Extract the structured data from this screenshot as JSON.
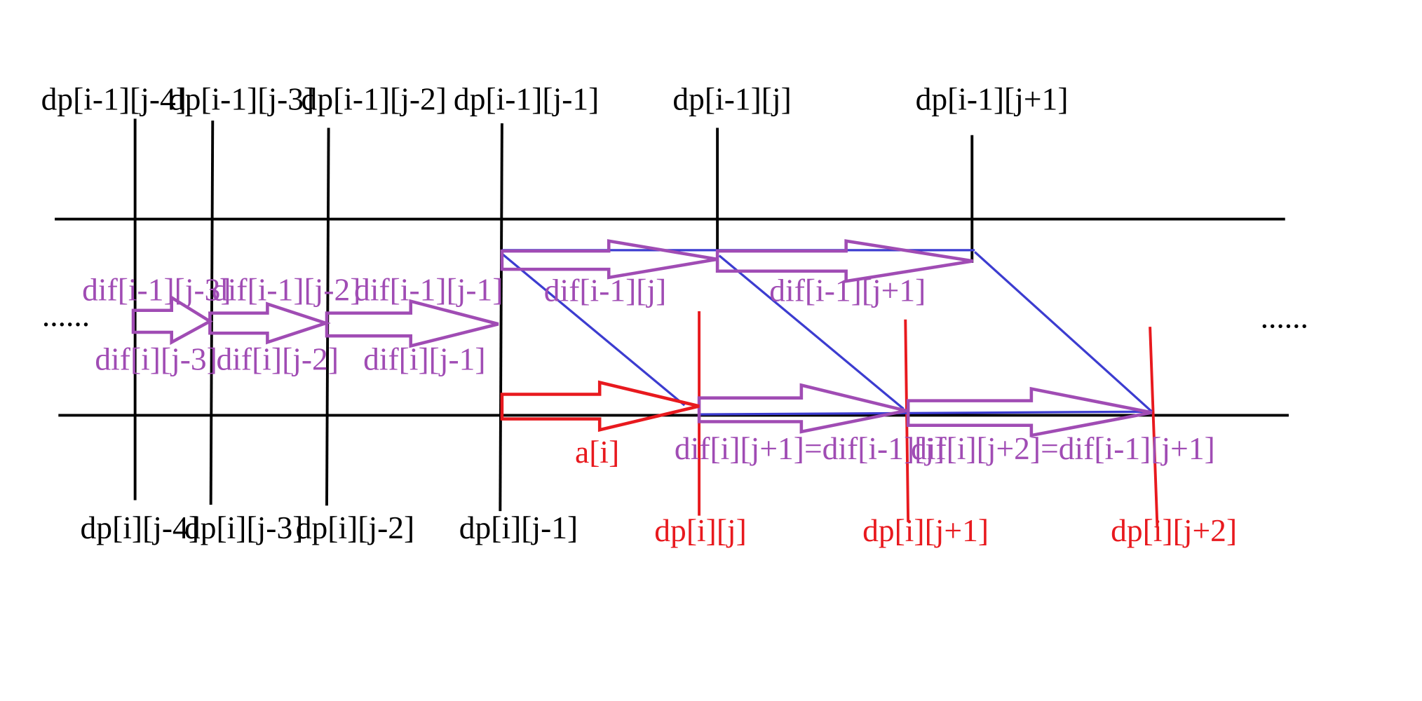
{
  "colors": {
    "black": "#000000",
    "purple": "#a04cb4",
    "blue": "#3c3cd0",
    "red": "#e8191e",
    "background": "#ffffff"
  },
  "labels": {
    "ellipsis_left": "......",
    "ellipsis_right": "......",
    "top": [
      "dp[i-1][j-4]",
      "dp[i-1][j-3]",
      "dp[i-1][j-2]",
      "dp[i-1][j-1]",
      "dp[i-1][j]",
      "dp[i-1][j+1]"
    ],
    "bottom": [
      "dp[i][j-4]",
      "dp[i][j-3]",
      "dp[i][j-2]",
      "dp[i][j-1]",
      "dp[i][j]",
      "dp[i][j+1]",
      "dp[i][j+2]"
    ],
    "dif_upper": [
      "dif[i-1][j-3]",
      "dif[i-1][j-2]",
      "dif[i-1][j-1]",
      "dif[i-1][j]",
      "dif[i-1][j+1]"
    ],
    "dif_lower": [
      "dif[i][j-3]",
      "dif[i][j-2]",
      "dif[i][j-1]"
    ],
    "a_i": "a[i]",
    "dif_eq_1": "dif[i][j+1]=dif[i-1][j]",
    "dif_eq_2": "dif[i][j+2]=dif[i-1][j+1]"
  }
}
